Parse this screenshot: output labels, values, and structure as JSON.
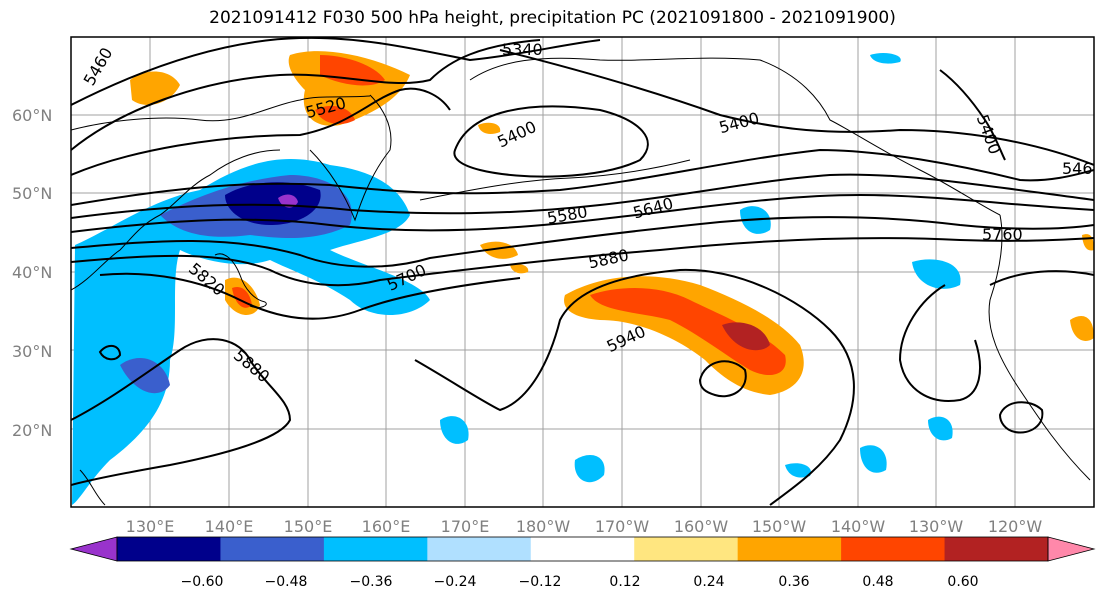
{
  "title": "2021091412 F030 500 hPa height, precipitation PC (2021091800 - 2021091900)",
  "map": {
    "lat_labels": [
      "60°N",
      "50°N",
      "40°N",
      "30°N",
      "20°N"
    ],
    "lon_labels": [
      "130°E",
      "140°E",
      "150°E",
      "160°E",
      "170°E",
      "180°W",
      "170°W",
      "160°W",
      "150°W",
      "140°W",
      "130°W",
      "120°W"
    ],
    "contour_labels": [
      "5460",
      "5340",
      "5520",
      "5400",
      "5400",
      "5400",
      "546",
      "5580",
      "5640",
      "5760",
      "5700",
      "5820",
      "5880",
      "5880",
      "5940"
    ]
  },
  "colorbar": {
    "ticks": [
      "−0.60",
      "−0.48",
      "−0.36",
      "−0.24",
      "−0.12",
      "0.12",
      "0.24",
      "0.36",
      "0.48",
      "0.60"
    ],
    "colors": [
      "#9933cc",
      "#00008b",
      "#3a5fcd",
      "#00bfff",
      "#b0e0ff",
      "#ffffff",
      "#ffe680",
      "#ffa500",
      "#ff4500",
      "#b22222",
      "#ff88aa"
    ]
  }
}
